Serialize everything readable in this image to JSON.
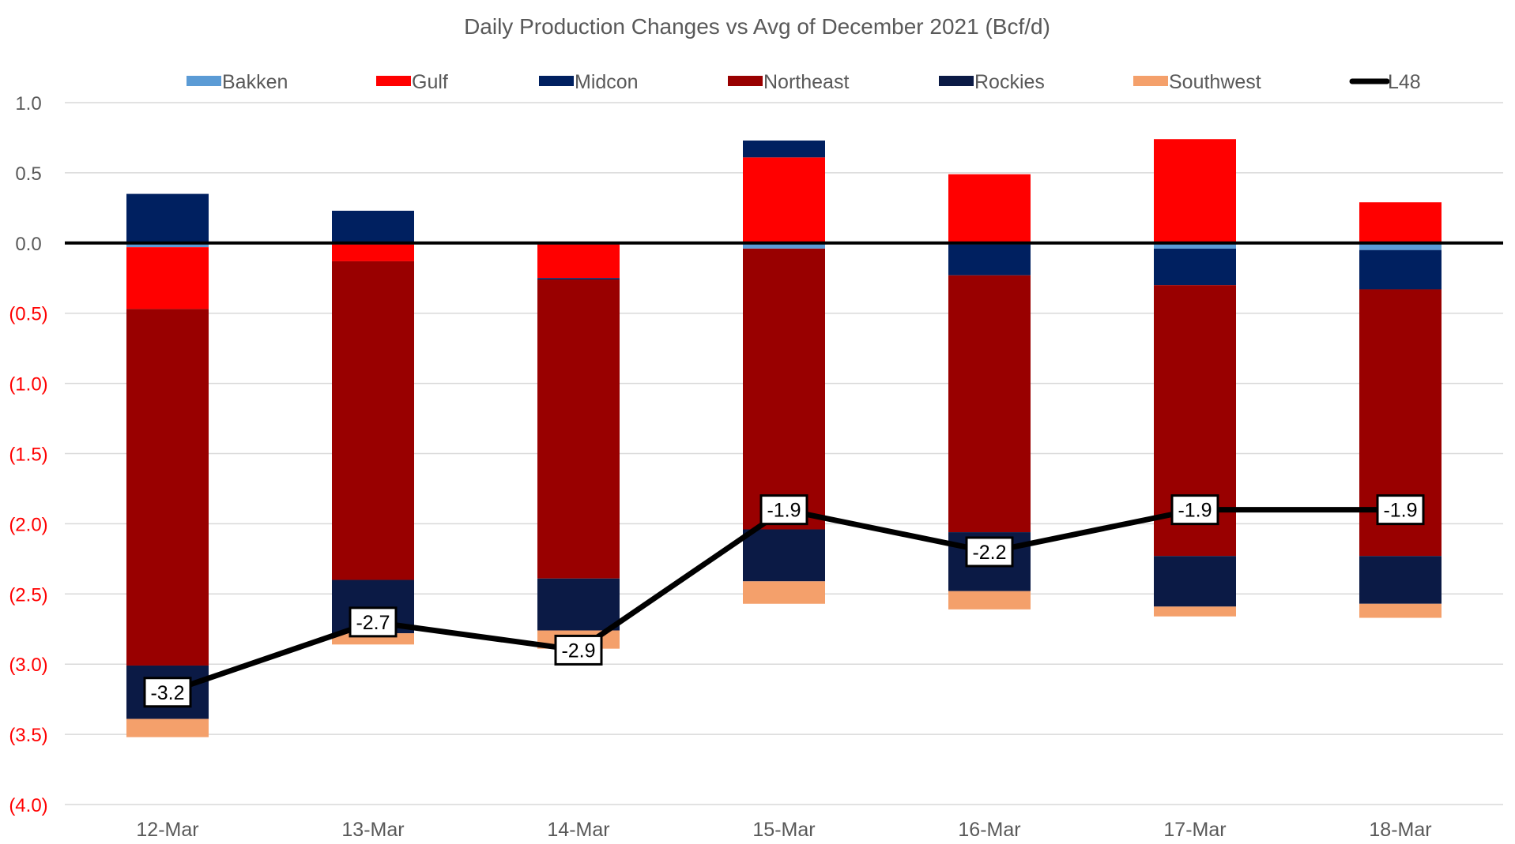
{
  "chart_data": {
    "type": "bar",
    "subtype": "stacked-bar-with-line",
    "title": "Daily Production Changes vs Avg of December 2021 (Bcf/d)",
    "xlabel": "",
    "ylabel": "",
    "ylim": [
      -4.0,
      1.0
    ],
    "ytick_values": [
      1.0,
      0.5,
      0.0,
      -0.5,
      -1.0,
      -1.5,
      -2.0,
      -2.5,
      -3.0,
      -3.5,
      -4.0
    ],
    "ytick_labels": [
      "1.0",
      "0.5",
      "0.0",
      "(0.5)",
      "(1.0)",
      "(1.5)",
      "(2.0)",
      "(2.5)",
      "(3.0)",
      "(3.5)",
      "(4.0)"
    ],
    "negative_tick_color": "#ff0000",
    "positive_tick_color": "#595959",
    "grid": true,
    "legend_position": "top",
    "categories": [
      "12-Mar",
      "13-Mar",
      "14-Mar",
      "15-Mar",
      "16-Mar",
      "17-Mar",
      "18-Mar"
    ],
    "series": [
      {
        "name": "Bakken",
        "color": "#5b9bd5",
        "values": [
          -0.03,
          -0.01,
          -0.01,
          -0.04,
          -0.01,
          -0.04,
          -0.05
        ]
      },
      {
        "name": "Gulf",
        "color": "#ff0000",
        "values": [
          -0.44,
          -0.12,
          -0.24,
          0.61,
          0.49,
          0.74,
          0.29
        ]
      },
      {
        "name": "Midcon",
        "color": "#002060",
        "values": [
          0.35,
          0.23,
          -0.01,
          0.12,
          -0.22,
          -0.26,
          -0.28
        ]
      },
      {
        "name": "Northeast",
        "color": "#990000",
        "values": [
          -2.54,
          -2.27,
          -2.13,
          -2.0,
          -1.83,
          -1.93,
          -1.9
        ]
      },
      {
        "name": "Rockies",
        "color": "#0b1a45",
        "values": [
          -0.38,
          -0.38,
          -0.37,
          -0.37,
          -0.42,
          -0.36,
          -0.34
        ]
      },
      {
        "name": "Southwest",
        "color": "#f4a06b",
        "values": [
          -0.13,
          -0.08,
          -0.13,
          -0.16,
          -0.13,
          -0.07,
          -0.1
        ]
      }
    ],
    "line": {
      "name": "L48",
      "color": "#000000",
      "values": [
        -3.2,
        -2.7,
        -2.9,
        -1.9,
        -2.2,
        -1.9,
        -1.9
      ],
      "labels": [
        "-3.2",
        "-2.7",
        "-2.9",
        "-1.9",
        "-2.2",
        "-1.9",
        "-1.9"
      ]
    }
  }
}
